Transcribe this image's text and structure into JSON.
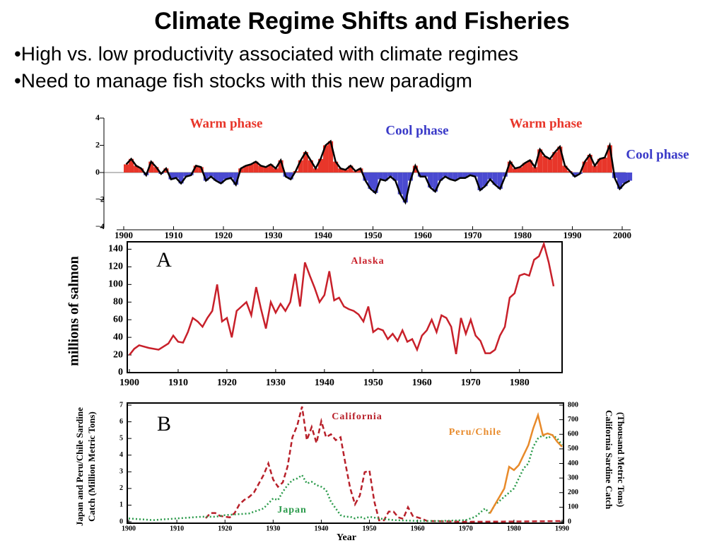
{
  "slide": {
    "title": "Climate Regime Shifts and Fisheries",
    "bullets": [
      "•High vs. low productivity associated with climate regimes",
      "•Need to manage fish stocks with this new paradigm"
    ]
  },
  "chart_data": [
    {
      "type": "bar",
      "positive_color": "#e8362a",
      "negative_color": "#4a4ad0",
      "line_color": "#000000",
      "x": [
        1900,
        1901,
        1902,
        1903,
        1904,
        1905,
        1906,
        1907,
        1908,
        1909,
        1910,
        1911,
        1912,
        1913,
        1914,
        1915,
        1916,
        1917,
        1918,
        1919,
        1920,
        1921,
        1922,
        1923,
        1924,
        1925,
        1926,
        1927,
        1928,
        1929,
        1930,
        1931,
        1932,
        1933,
        1934,
        1935,
        1936,
        1937,
        1938,
        1939,
        1940,
        1941,
        1942,
        1943,
        1944,
        1945,
        1946,
        1947,
        1948,
        1949,
        1950,
        1951,
        1952,
        1953,
        1954,
        1955,
        1956,
        1957,
        1958,
        1959,
        1960,
        1961,
        1962,
        1963,
        1964,
        1965,
        1966,
        1967,
        1968,
        1969,
        1970,
        1971,
        1972,
        1973,
        1974,
        1975,
        1976,
        1977,
        1978,
        1979,
        1980,
        1981,
        1982,
        1983,
        1984,
        1985,
        1986,
        1987,
        1988,
        1989,
        1990,
        1991,
        1992,
        1993,
        1994,
        1995,
        1996,
        1997,
        1998,
        1999,
        2000,
        2001
      ],
      "values": [
        0.6,
        1.0,
        0.5,
        0.3,
        -0.2,
        0.8,
        0.4,
        -0.1,
        0.3,
        -0.5,
        -0.4,
        -0.8,
        -0.3,
        -0.2,
        0.5,
        0.4,
        -0.6,
        -0.3,
        -0.6,
        -0.8,
        -0.5,
        -0.4,
        -0.9,
        0.3,
        0.5,
        0.6,
        0.8,
        0.5,
        0.4,
        0.6,
        0.3,
        0.9,
        -0.3,
        -0.5,
        0.1,
        0.9,
        1.5,
        0.9,
        0.3,
        1.0,
        2.0,
        2.3,
        0.8,
        0.3,
        0.2,
        0.5,
        0.1,
        0.3,
        -0.6,
        -1.2,
        -1.5,
        -0.5,
        -0.6,
        -0.3,
        -0.6,
        -1.6,
        -2.2,
        -0.6,
        0.5,
        -0.3,
        -0.3,
        -1.1,
        -1.4,
        -0.6,
        -0.3,
        -0.5,
        -0.6,
        -0.4,
        -0.4,
        -0.2,
        -0.3,
        -1.3,
        -1.0,
        -0.5,
        -0.9,
        -1.2,
        -0.3,
        0.8,
        0.3,
        0.4,
        0.7,
        0.9,
        0.4,
        1.7,
        1.2,
        1.0,
        1.5,
        1.9,
        0.5,
        0.1,
        -0.3,
        -0.1,
        0.8,
        1.3,
        0.5,
        1.0,
        1.1,
        2.0,
        -0.4,
        -1.2,
        -0.8,
        -0.6
      ],
      "xlim": [
        1900,
        2000
      ],
      "xticks": [
        1900,
        1910,
        1920,
        1930,
        1940,
        1950,
        1960,
        1970,
        1980,
        1990,
        2000
      ],
      "ylim": [
        -4,
        4
      ],
      "yticks": [
        4,
        2,
        0,
        {
          "value": -2,
          "label": "−2"
        },
        {
          "value": -4,
          "label": "−4"
        }
      ],
      "annotations": [
        {
          "text": "Warm phase",
          "color": "#e8362a"
        },
        {
          "text": "Cool phase",
          "color": "#3a3ac8"
        },
        {
          "text": "Warm phase",
          "color": "#e8362a"
        },
        {
          "text": "Cool phase",
          "color": "#3a3ac8"
        }
      ]
    },
    {
      "type": "line",
      "panel": "A",
      "ylabel": "millions of salmon",
      "xlim": [
        1900,
        1987
      ],
      "xticks": [
        1900,
        1910,
        1920,
        1930,
        1940,
        1950,
        1960,
        1970,
        1980
      ],
      "ylim": [
        0,
        150
      ],
      "yticks": [
        0,
        20,
        40,
        60,
        80,
        100,
        120,
        140
      ],
      "series": [
        {
          "name": "Alaska",
          "color": "#c8202a",
          "x": [
            1900,
            1901,
            1902,
            1904,
            1906,
            1908,
            1909,
            1910,
            1911,
            1912,
            1913,
            1914,
            1915,
            1916,
            1917,
            1918,
            1919,
            1920,
            1921,
            1922,
            1923,
            1924,
            1925,
            1926,
            1927,
            1928,
            1929,
            1930,
            1931,
            1932,
            1933,
            1934,
            1935,
            1936,
            1937,
            1938,
            1939,
            1940,
            1941,
            1942,
            1943,
            1944,
            1945,
            1946,
            1947,
            1948,
            1949,
            1950,
            1951,
            1952,
            1953,
            1954,
            1955,
            1956,
            1957,
            1958,
            1959,
            1960,
            1961,
            1962,
            1963,
            1964,
            1965,
            1966,
            1967,
            1968,
            1969,
            1970,
            1971,
            1972,
            1973,
            1974,
            1975,
            1976,
            1977,
            1978,
            1979,
            1980,
            1981,
            1982,
            1983,
            1984,
            1985,
            1986,
            1987
          ],
          "values": [
            20,
            27,
            31,
            28,
            26,
            33,
            42,
            35,
            34,
            46,
            62,
            58,
            52,
            62,
            70,
            100,
            58,
            62,
            40,
            70,
            75,
            80,
            65,
            97,
            72,
            50,
            80,
            68,
            78,
            70,
            80,
            112,
            75,
            125,
            110,
            96,
            80,
            88,
            115,
            82,
            85,
            75,
            72,
            70,
            66,
            58,
            75,
            46,
            50,
            48,
            38,
            44,
            36,
            48,
            35,
            38,
            26,
            42,
            48,
            60,
            46,
            65,
            62,
            52,
            21,
            62,
            44,
            60,
            42,
            36,
            22,
            22,
            26,
            42,
            52,
            85,
            90,
            110,
            112,
            110,
            128,
            132,
            146,
            125,
            98
          ]
        }
      ]
    },
    {
      "type": "line",
      "panel": "B",
      "xlabel": "Year",
      "ylabel": [
        "Japan and Peru/Chile Sardine",
        "Catch (Million Metric Tons)"
      ],
      "y2label": [
        "California Sardine Catch",
        "(Thousand Metric Tons)"
      ],
      "xlim": [
        1900,
        1990
      ],
      "xticks": [
        1900,
        1910,
        1920,
        1930,
        1940,
        1950,
        1960,
        1970,
        1980,
        1990
      ],
      "ylim": [
        0,
        7
      ],
      "yticks": [
        0,
        1,
        2,
        3,
        4,
        5,
        6,
        7
      ],
      "y2lim": [
        0,
        800
      ],
      "y2ticks": [
        0,
        100,
        200,
        300,
        400,
        500,
        600,
        700,
        800
      ],
      "series": [
        {
          "name": "California",
          "color": "#b8202a",
          "axis": "y2",
          "x": [
            1916,
            1917,
            1918,
            1919,
            1920,
            1921,
            1922,
            1923,
            1924,
            1925,
            1926,
            1927,
            1928,
            1929,
            1930,
            1931,
            1932,
            1933,
            1934,
            1935,
            1936,
            1937,
            1938,
            1939,
            1940,
            1941,
            1942,
            1943,
            1944,
            1945,
            1946,
            1947,
            1948,
            1949,
            1950,
            1951,
            1952,
            1953,
            1954,
            1955,
            1956,
            1957,
            1958,
            1959,
            1960,
            1961,
            1962,
            1963,
            1970,
            1980,
            1990
          ],
          "values": [
            25,
            60,
            60,
            40,
            35,
            30,
            60,
            120,
            150,
            170,
            200,
            260,
            320,
            400,
            290,
            240,
            270,
            380,
            580,
            660,
            790,
            560,
            650,
            540,
            690,
            580,
            600,
            560,
            580,
            400,
            230,
            120,
            180,
            340,
            350,
            140,
            10,
            10,
            70,
            70,
            30,
            20,
            100,
            40,
            30,
            20,
            5,
            5,
            0,
            2,
            5
          ]
        },
        {
          "name": "Japan",
          "color": "#2a9a4a",
          "x": [
            1900,
            1905,
            1910,
            1915,
            1918,
            1920,
            1925,
            1928,
            1930,
            1931,
            1932,
            1933,
            1934,
            1935,
            1936,
            1937,
            1938,
            1939,
            1940,
            1941,
            1942,
            1943,
            1944,
            1945,
            1946,
            1947,
            1948,
            1949,
            1950,
            1952,
            1955,
            1960,
            1965,
            1970,
            1972,
            1974,
            1975,
            1976,
            1978,
            1980,
            1982,
            1983,
            1984,
            1985,
            1986,
            1987,
            1988,
            1989,
            1990
          ],
          "values": [
            0.2,
            0.1,
            0.2,
            0.3,
            0.3,
            0.4,
            0.5,
            0.8,
            1.4,
            1.3,
            1.8,
            2.2,
            2.5,
            2.6,
            2.8,
            2.3,
            2.4,
            2.2,
            2.1,
            1.9,
            1.2,
            0.8,
            0.4,
            0.3,
            0.3,
            0.2,
            0.3,
            0.2,
            0.3,
            0.2,
            0.1,
            0.05,
            0.05,
            0.1,
            0.3,
            0.8,
            0.5,
            1.0,
            1.5,
            2.0,
            3.2,
            3.5,
            4.5,
            5.0,
            5.2,
            5.0,
            5.2,
            5.0,
            4.6
          ]
        },
        {
          "name": "Peru/Chile",
          "color": "#e88a2a",
          "x": [
            1975,
            1976,
            1977,
            1978,
            1979,
            1980,
            1981,
            1982,
            1983,
            1984,
            1985,
            1986,
            1987,
            1988,
            1989,
            1990
          ],
          "values": [
            0.5,
            1.0,
            1.5,
            2.0,
            3.3,
            3.1,
            3.4,
            4.0,
            4.6,
            5.6,
            6.4,
            5.2,
            5.3,
            5.2,
            4.8,
            4.5
          ]
        }
      ]
    }
  ]
}
